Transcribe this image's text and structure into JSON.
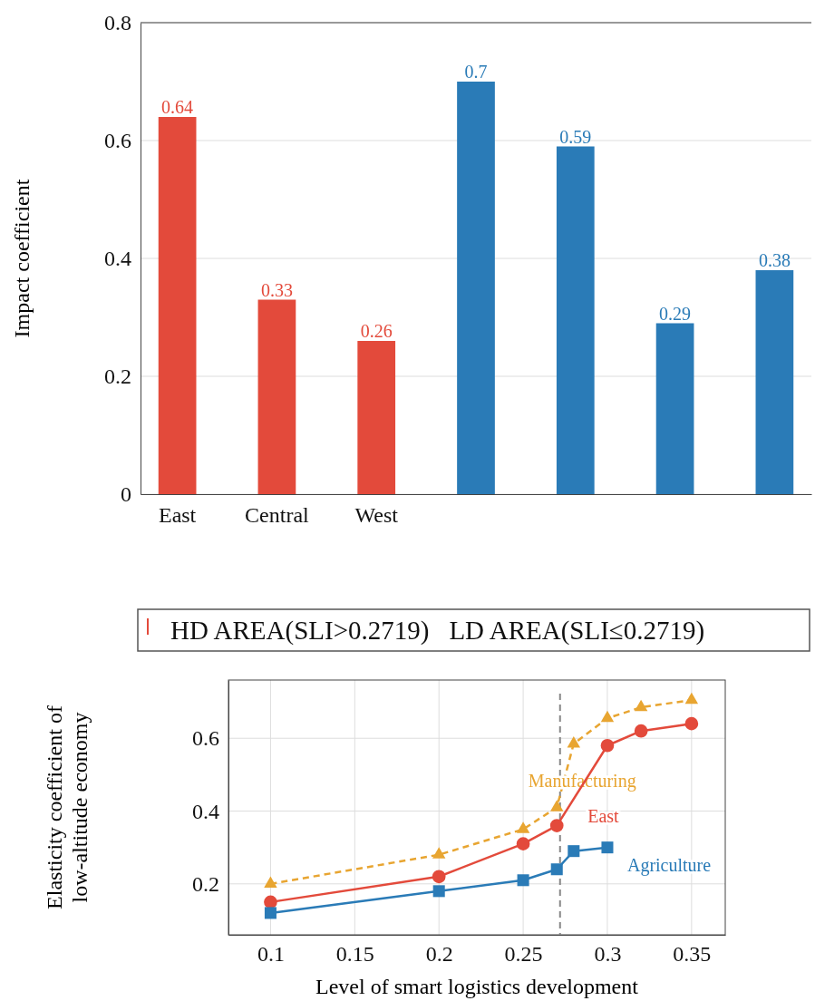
{
  "chart_data": [
    {
      "type": "bar",
      "ylabel": "Impact coefficient",
      "categories": [
        "East",
        "Central",
        "West",
        null,
        null,
        null,
        null
      ],
      "values": [
        0.64,
        0.33,
        0.26,
        0.7,
        0.59,
        0.29,
        0.38
      ],
      "colors": [
        "#e34a3b",
        "#e34a3b",
        "#e34a3b",
        "#2a7bb7",
        "#2a7bb7",
        "#2a7bb7",
        "#2a7bb7"
      ],
      "ylim": [
        0,
        0.8
      ],
      "yticks": [
        0,
        0.2,
        0.4,
        0.6,
        0.8
      ],
      "grid": "y",
      "data_labels": true
    },
    {
      "type": "line",
      "xlabel": "Level of smart logistics development",
      "ylabel": "Elasticity coefficient of\nlow-altitude economy",
      "x": [
        0.1,
        0.2,
        0.25,
        0.27,
        0.28,
        0.3,
        0.32,
        0.35
      ],
      "series": [
        {
          "name": "Manufacturing",
          "color": "#e8a531",
          "marker": "triangle",
          "line_style": "dashed",
          "values": [
            0.2,
            0.28,
            0.35,
            0.41,
            0.585,
            0.655,
            0.685,
            0.705
          ]
        },
        {
          "name": "East",
          "color": "#e34a3b",
          "marker": "circle",
          "line_style": "solid",
          "values": [
            0.15,
            0.22,
            0.31,
            0.36,
            null,
            0.58,
            0.62,
            0.64
          ]
        },
        {
          "name": "Agriculture",
          "color": "#2a7bb7",
          "marker": "square",
          "line_style": "solid",
          "values": [
            0.12,
            0.18,
            0.21,
            0.24,
            0.29,
            0.3,
            null,
            null
          ]
        }
      ],
      "xlim": [
        0.075,
        0.37
      ],
      "ylim": [
        0.06,
        0.76
      ],
      "xticks": [
        0.1,
        0.15,
        0.2,
        0.25,
        0.3,
        0.35
      ],
      "yticks": [
        0.2,
        0.4,
        0.6
      ],
      "grid": true,
      "ref_lines": [
        {
          "axis": "x",
          "value": 0.2719,
          "color": "#888888",
          "line_style": "dashed"
        }
      ],
      "annotations": [
        "HD AREA(SLI>0.2719)",
        "LD AREA(SLI≤0.2719)"
      ]
    }
  ]
}
